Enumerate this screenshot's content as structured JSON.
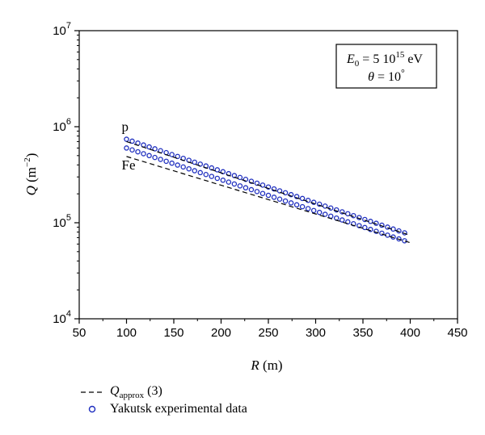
{
  "chart_data": {
    "type": "scatter",
    "xlabel": {
      "var": "R",
      "unit": "(m)"
    },
    "ylabel": {
      "var": "Q",
      "unit_base": "(m",
      "unit_exp": "−2",
      "unit_close": ")"
    },
    "xlim": [
      50,
      450
    ],
    "ylim": [
      10000,
      10000000
    ],
    "yscale": "log",
    "grid": false,
    "x_ticks": [
      "50",
      "100",
      "150",
      "200",
      "250",
      "300",
      "350",
      "400",
      "450"
    ],
    "y_ticks": [
      {
        "base": "10",
        "exp": "4",
        "value": 10000
      },
      {
        "base": "10",
        "exp": "5",
        "value": 100000
      },
      {
        "base": "10",
        "exp": "6",
        "value": 1000000
      },
      {
        "base": "10",
        "exp": "7",
        "value": 10000000
      }
    ],
    "annotation_box": {
      "line1": {
        "sym": "E",
        "sub": "0",
        "eq": " = 5 10",
        "sup": "15",
        "unit": " eV"
      },
      "line2": {
        "sym": "θ",
        "eq": " = 10",
        "unit": "°"
      },
      "placement": "top-right"
    },
    "curve_labels": [
      {
        "text": "p",
        "x": 100,
        "y": 900000
      },
      {
        "text": "Fe",
        "x": 100,
        "y": 360000
      }
    ],
    "series": [
      {
        "name": "p",
        "kind": "markers",
        "marker": "open-circle",
        "color": "#1f2fbf",
        "x_start": 100,
        "x_end": 398,
        "x_step": 6,
        "y_at_100": 740000,
        "y_at_400": 75000
      },
      {
        "name": "Fe",
        "kind": "markers",
        "marker": "open-circle",
        "color": "#1f2fbf",
        "x_start": 100,
        "x_end": 398,
        "x_step": 6,
        "y_at_100": 600000,
        "y_at_400": 62000
      },
      {
        "name": "p",
        "kind": "approx-line",
        "color": "#000000",
        "points": [
          [
            100,
            700000
          ],
          [
            400,
            74000
          ]
        ]
      },
      {
        "name": "Fe",
        "kind": "approx-line",
        "color": "#000000",
        "points": [
          [
            100,
            490000
          ],
          [
            400,
            62000
          ]
        ]
      }
    ],
    "legend": {
      "placement": "bottom-left",
      "items": [
        {
          "kind": "dashed-line",
          "label_main": "Q",
          "label_sub": "approx",
          "label_tail": " (3)"
        },
        {
          "kind": "open-circle",
          "label": "Yakutsk experimental data"
        }
      ]
    }
  }
}
